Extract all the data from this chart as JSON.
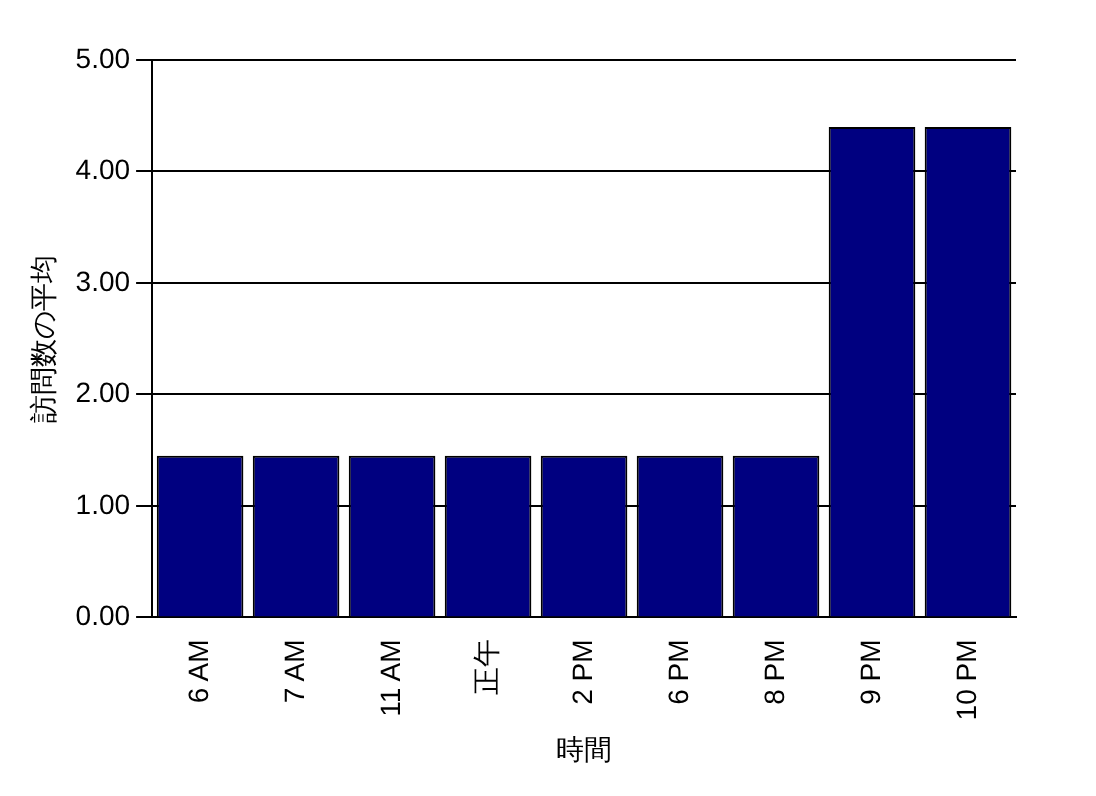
{
  "chart_data": {
    "type": "bar",
    "xlabel": "時間",
    "ylabel": "訪問数の平均",
    "categories": [
      "6 AM",
      "7 AM",
      "11 AM",
      "正午",
      "2 PM",
      "6 PM",
      "8 PM",
      "9 PM",
      "10 PM"
    ],
    "values": [
      1.45,
      1.45,
      1.45,
      1.45,
      1.45,
      1.45,
      1.45,
      4.4,
      4.4
    ],
    "color": "#000080",
    "ylim": [
      0,
      5
    ],
    "yticks": [
      {
        "value": 0,
        "label": "0.00"
      },
      {
        "value": 1,
        "label": "1.00"
      },
      {
        "value": 2,
        "label": "2.00"
      },
      {
        "value": 3,
        "label": "3.00"
      },
      {
        "value": 4,
        "label": "4.00"
      },
      {
        "value": 5,
        "label": "5.00"
      }
    ],
    "grid": "y",
    "legend": false
  }
}
